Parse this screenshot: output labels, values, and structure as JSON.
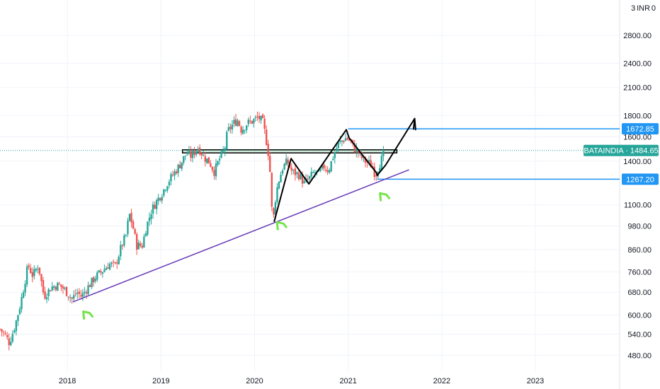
{
  "currency_label": "3 INR 0",
  "chart_data": {
    "type": "candlestick",
    "title": "",
    "symbol": "BATAINDIA",
    "last_price": 1484.65,
    "last_price_label": "BATAINDIA · 1484.65",
    "y_scale": "log",
    "ylim": [
      440,
      3400
    ],
    "xlim": [
      2017.28,
      2023.9
    ],
    "y_ticks": [
      480,
      540,
      600,
      680,
      760,
      860,
      980,
      1100,
      1400,
      1600,
      1800,
      2100,
      2400,
      2800
    ],
    "y_tick_labels": [
      "480.00",
      "540.00",
      "600.00",
      "680.00",
      "760.00",
      "860.00",
      "980.00",
      "1100.00",
      "1400.00",
      "1600.00",
      "1800.00",
      "2100.00",
      "2400.00",
      "2800.00"
    ],
    "x_ticks": [
      2018,
      2019,
      2020,
      2021,
      2022,
      2023
    ],
    "x_tick_labels": [
      "2018",
      "2019",
      "2020",
      "2021",
      "2022",
      "2023"
    ],
    "grid": true,
    "colors": {
      "up": "#26a69a",
      "down": "#ef5350",
      "hline": "#2196f3",
      "trendline": "#673ab7",
      "marker": "#76e34b",
      "last_price": "#26a69a"
    },
    "closes": [
      [
        2017.28,
        555
      ],
      [
        2017.33,
        540
      ],
      [
        2017.38,
        515
      ],
      [
        2017.44,
        565
      ],
      [
        2017.5,
        640
      ],
      [
        2017.58,
        790
      ],
      [
        2017.63,
        745
      ],
      [
        2017.69,
        790
      ],
      [
        2017.75,
        665
      ],
      [
        2017.83,
        700
      ],
      [
        2017.91,
        708
      ],
      [
        2017.97,
        690
      ],
      [
        2018.05,
        655
      ],
      [
        2018.1,
        680
      ],
      [
        2018.15,
        665
      ],
      [
        2018.22,
        700
      ],
      [
        2018.3,
        740
      ],
      [
        2018.36,
        760
      ],
      [
        2018.45,
        795
      ],
      [
        2018.51,
        785
      ],
      [
        2018.58,
        880
      ],
      [
        2018.63,
        935
      ],
      [
        2018.66,
        1050
      ],
      [
        2018.7,
        975
      ],
      [
        2018.74,
        880
      ],
      [
        2018.8,
        880
      ],
      [
        2018.84,
        970
      ],
      [
        2018.9,
        1070
      ],
      [
        2018.95,
        1120
      ],
      [
        2019.02,
        1185
      ],
      [
        2019.07,
        1245
      ],
      [
        2019.14,
        1310
      ],
      [
        2019.2,
        1370
      ],
      [
        2019.27,
        1460
      ],
      [
        2019.32,
        1440
      ],
      [
        2019.4,
        1510
      ],
      [
        2019.46,
        1430
      ],
      [
        2019.52,
        1390
      ],
      [
        2019.57,
        1320
      ],
      [
        2019.62,
        1410
      ],
      [
        2019.68,
        1495
      ],
      [
        2019.71,
        1645
      ],
      [
        2019.77,
        1720
      ],
      [
        2019.82,
        1755
      ],
      [
        2019.86,
        1660
      ],
      [
        2019.92,
        1725
      ],
      [
        2019.98,
        1745
      ],
      [
        2020.04,
        1785
      ],
      [
        2020.09,
        1730
      ],
      [
        2020.13,
        1545
      ],
      [
        2020.16,
        1400
      ],
      [
        2020.18,
        1090
      ],
      [
        2020.2,
        1020
      ],
      [
        2020.22,
        1130
      ],
      [
        2020.25,
        1240
      ],
      [
        2020.3,
        1350
      ],
      [
        2020.35,
        1400
      ],
      [
        2020.4,
        1320
      ],
      [
        2020.47,
        1300
      ],
      [
        2020.53,
        1240
      ],
      [
        2020.58,
        1270
      ],
      [
        2020.64,
        1320
      ],
      [
        2020.69,
        1305
      ],
      [
        2020.74,
        1360
      ],
      [
        2020.79,
        1330
      ],
      [
        2020.84,
        1440
      ],
      [
        2020.89,
        1530
      ],
      [
        2020.93,
        1565
      ],
      [
        2020.98,
        1590
      ],
      [
        2021.03,
        1560
      ],
      [
        2021.06,
        1500
      ],
      [
        2021.1,
        1480
      ],
      [
        2021.14,
        1430
      ],
      [
        2021.18,
        1400
      ],
      [
        2021.22,
        1385
      ],
      [
        2021.26,
        1360
      ],
      [
        2021.29,
        1295
      ],
      [
        2021.32,
        1350
      ],
      [
        2021.36,
        1420
      ],
      [
        2021.39,
        1484.65
      ]
    ],
    "support_band": {
      "from": 1465,
      "to": 1490,
      "x_start": 2019.23,
      "x_end": 2021.52
    },
    "hlines": [
      {
        "price": 1672.85,
        "label": "1672.85",
        "x_start": 2021.0
      },
      {
        "price": 1267.2,
        "label": "1267.20",
        "x_start": 2021.31
      }
    ],
    "trendline": [
      [
        2018.06,
        645
      ],
      [
        2021.65,
        1335
      ]
    ],
    "arrow_path": [
      [
        2020.21,
        1005
      ],
      [
        2020.39,
        1420
      ],
      [
        2020.58,
        1235
      ],
      [
        2020.98,
        1665
      ],
      [
        2021.01,
        1590
      ],
      [
        2021.3,
        1315
      ],
      [
        2021.31,
        1295
      ],
      [
        2021.4,
        1370
      ],
      [
        2021.71,
        1770
      ],
      [
        2021.72,
        1665
      ]
    ],
    "markers": [
      [
        2018.2,
        602
      ],
      [
        2020.27,
        985
      ],
      [
        2021.37,
        1155
      ]
    ]
  }
}
